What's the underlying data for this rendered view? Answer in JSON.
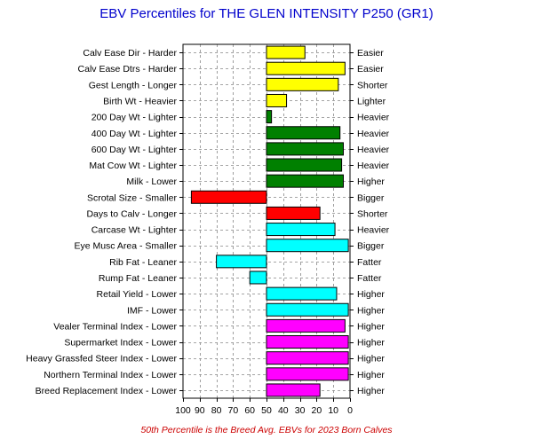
{
  "chart_data": {
    "type": "bar",
    "title": "EBV Percentiles for THE GLEN INTENSITY P250 (GR1)",
    "footnote": "50th Percentile is the Breed Avg. EBVs for 2023 Born Calves",
    "x_axis": {
      "range": [
        100,
        0
      ],
      "reversed": true,
      "ticks": [
        "100",
        "90",
        "80",
        "70",
        "60",
        "50",
        "40",
        "30",
        "20",
        "10",
        "0"
      ],
      "baseline": 50,
      "grid": true,
      "grid_style": "dashed"
    },
    "colors": {
      "yellow": "#ffff00",
      "green": "#008000",
      "red": "#ff0000",
      "cyan": "#00ffff",
      "magenta": "#ff00ff",
      "title": "#0000cc",
      "footnote": "#cc0000"
    },
    "traits": [
      {
        "left_label": "Calv Ease Dir - Harder",
        "right_label": "Easier",
        "value": 27,
        "color": "yellow"
      },
      {
        "left_label": "Calv Ease Dtrs - Harder",
        "right_label": "Easier",
        "value": 3,
        "color": "yellow"
      },
      {
        "left_label": "Gest Length - Longer",
        "right_label": "Shorter",
        "value": 7,
        "color": "yellow"
      },
      {
        "left_label": "Birth Wt - Heavier",
        "right_label": "Lighter",
        "value": 38,
        "color": "yellow"
      },
      {
        "left_label": "200 Day Wt - Lighter",
        "right_label": "Heavier",
        "value": 47,
        "color": "green"
      },
      {
        "left_label": "400 Day Wt - Lighter",
        "right_label": "Heavier",
        "value": 6,
        "color": "green"
      },
      {
        "left_label": "600 Day Wt - Lighter",
        "right_label": "Heavier",
        "value": 4,
        "color": "green"
      },
      {
        "left_label": "Mat Cow Wt - Lighter",
        "right_label": "Heavier",
        "value": 5,
        "color": "green"
      },
      {
        "left_label": "Milk - Lower",
        "right_label": "Higher",
        "value": 4,
        "color": "green"
      },
      {
        "left_label": "Scrotal Size - Smaller",
        "right_label": "Bigger",
        "value": 95,
        "color": "red"
      },
      {
        "left_label": "Days to Calv - Longer",
        "right_label": "Shorter",
        "value": 18,
        "color": "red"
      },
      {
        "left_label": "Carcase Wt - Lighter",
        "right_label": "Heavier",
        "value": 9,
        "color": "cyan"
      },
      {
        "left_label": "Eye Musc Area - Smaller",
        "right_label": "Bigger",
        "value": 1,
        "color": "cyan"
      },
      {
        "left_label": "Rib Fat - Leaner",
        "right_label": "Fatter",
        "value": 80,
        "color": "cyan"
      },
      {
        "left_label": "Rump Fat - Leaner",
        "right_label": "Fatter",
        "value": 60,
        "color": "cyan"
      },
      {
        "left_label": "Retail Yield - Lower",
        "right_label": "Higher",
        "value": 8,
        "color": "cyan"
      },
      {
        "left_label": "IMF - Lower",
        "right_label": "Higher",
        "value": 1,
        "color": "cyan"
      },
      {
        "left_label": "Vealer Terminal Index - Lower",
        "right_label": "Higher",
        "value": 3,
        "color": "magenta"
      },
      {
        "left_label": "Supermarket Index - Lower",
        "right_label": "Higher",
        "value": 1,
        "color": "magenta"
      },
      {
        "left_label": "Heavy Grassfed Steer Index - Lower",
        "right_label": "Higher",
        "value": 1,
        "color": "magenta"
      },
      {
        "left_label": "Northern Terminal Index - Lower",
        "right_label": "Higher",
        "value": 1,
        "color": "magenta"
      },
      {
        "left_label": "Breed Replacement Index - Lower",
        "right_label": "Higher",
        "value": 18,
        "color": "magenta"
      }
    ]
  }
}
